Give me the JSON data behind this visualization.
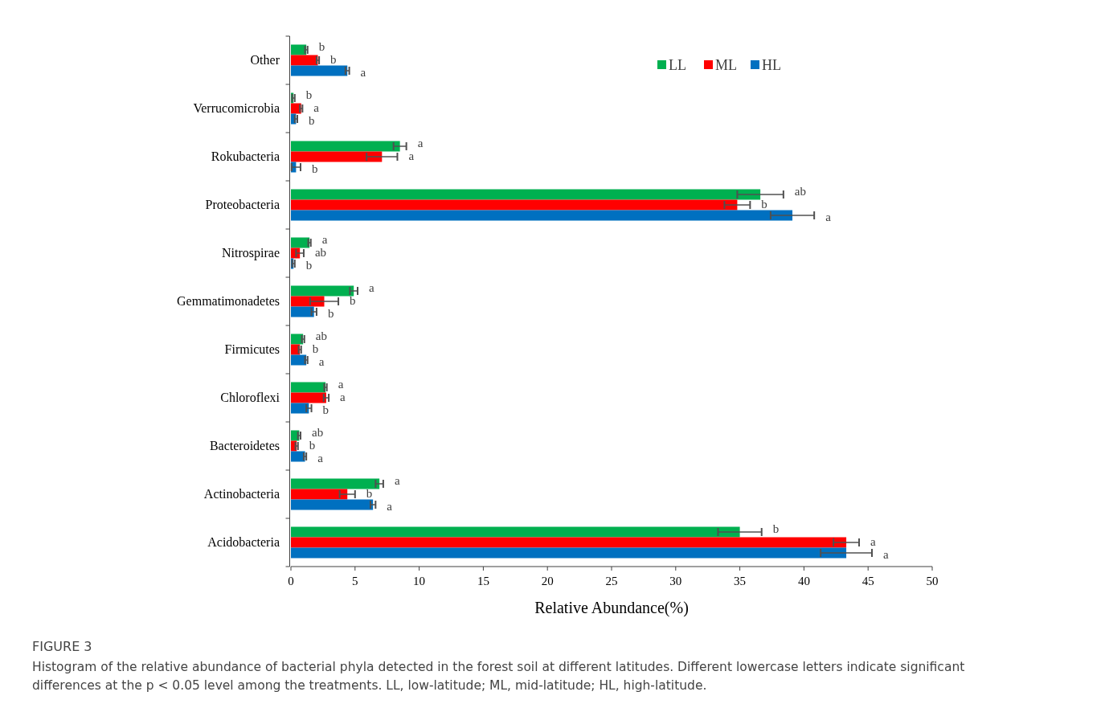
{
  "chart_data": {
    "type": "bar",
    "orientation": "horizontal",
    "title": "FIGURE 3",
    "xlabel": "Relative Abundance(%)",
    "categories": [
      "Other",
      "Verrucomicrobia",
      "Rokubacteria",
      "Proteobacteria",
      "Nitrospirae",
      "Gemmatimonadetes",
      "Firmicutes",
      "Chloroflexi",
      "Bacteroidetes",
      "Actinobacteria",
      "Acidobacteria"
    ],
    "series": [
      {
        "name": "LL",
        "color": "#00b050",
        "values": [
          1.2,
          0.2,
          8.5,
          36.6,
          1.45,
          4.9,
          0.95,
          2.7,
          0.65,
          6.9,
          35.0
        ],
        "errors": [
          0.1,
          0.1,
          0.5,
          1.8,
          0.1,
          0.3,
          0.1,
          0.1,
          0.1,
          0.3,
          1.7
        ],
        "value_labels": [
          "b",
          "b",
          "a",
          "ab",
          "a",
          "a",
          "ab",
          "a",
          "ab",
          "a",
          "b"
        ]
      },
      {
        "name": "ML",
        "color": "#ff0000",
        "values": [
          2.1,
          0.8,
          7.1,
          34.8,
          0.7,
          2.6,
          0.7,
          2.75,
          0.45,
          4.4,
          43.3
        ],
        "errors": [
          0.1,
          0.1,
          1.2,
          1.0,
          0.3,
          1.1,
          0.1,
          0.2,
          0.1,
          0.6,
          1.0
        ],
        "value_labels": [
          "b",
          "a",
          "a",
          "b",
          "ab",
          "b",
          "b",
          "a",
          "b",
          "b",
          "a"
        ]
      },
      {
        "name": "HL",
        "color": "#0070c0",
        "values": [
          4.4,
          0.4,
          0.4,
          39.1,
          0.2,
          1.8,
          1.2,
          1.4,
          1.1,
          6.4,
          43.3
        ],
        "errors": [
          0.15,
          0.1,
          0.35,
          1.7,
          0.1,
          0.2,
          0.1,
          0.2,
          0.1,
          0.2,
          2.0
        ],
        "value_labels": [
          "a",
          "b",
          "b",
          "a",
          "b",
          "b",
          "a",
          "b",
          "a",
          "a",
          "a"
        ]
      }
    ],
    "xlim": [
      0,
      50
    ],
    "xticks": [
      0,
      5,
      10,
      15,
      20,
      25,
      30,
      35,
      40,
      45,
      50
    ],
    "legend": "top right",
    "annotations": [
      "Histogram of the relative abundance of bacterial phyla detected in the forest soil at different latitudes. Different lowercase letters indicate significant differences at the p < 0.05 level among the treatments. LL, low-latitude; ML, mid-latitude; HL, high-latitude."
    ]
  }
}
